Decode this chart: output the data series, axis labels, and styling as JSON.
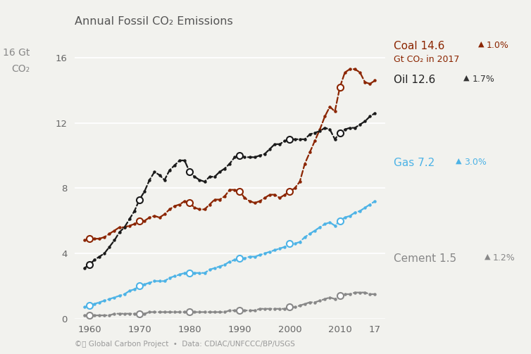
{
  "title": "Annual Fossil CO₂ Emissions",
  "background_color": "#f2f2ee",
  "plot_bg": "#f2f2ee",
  "footnote": "©Ⓡ Global Carbon Project  •  Data: CDIAC/UNFCCC/BP/USGS",
  "ylim": [
    0,
    16.5
  ],
  "yticks": [
    0,
    4,
    8,
    12,
    16
  ],
  "xlim": [
    1957,
    2019
  ],
  "coal_color": "#8B2500",
  "oil_color": "#1a1a1a",
  "gas_color": "#4db3e6",
  "cement_color": "#888888",
  "coal_years": [
    1959,
    1960,
    1961,
    1962,
    1963,
    1964,
    1965,
    1966,
    1967,
    1968,
    1969,
    1970,
    1971,
    1972,
    1973,
    1974,
    1975,
    1976,
    1977,
    1978,
    1979,
    1980,
    1981,
    1982,
    1983,
    1984,
    1985,
    1986,
    1987,
    1988,
    1989,
    1990,
    1991,
    1992,
    1993,
    1994,
    1995,
    1996,
    1997,
    1998,
    1999,
    2000,
    2001,
    2002,
    2003,
    2004,
    2005,
    2006,
    2007,
    2008,
    2009,
    2010,
    2011,
    2012,
    2013,
    2014,
    2015,
    2016,
    2017
  ],
  "coal_vals": [
    4.8,
    4.9,
    4.9,
    4.9,
    5.0,
    5.2,
    5.4,
    5.6,
    5.6,
    5.7,
    5.8,
    6.0,
    6.0,
    6.2,
    6.3,
    6.2,
    6.4,
    6.7,
    6.9,
    7.0,
    7.2,
    7.1,
    6.8,
    6.7,
    6.7,
    7.0,
    7.3,
    7.3,
    7.5,
    7.9,
    7.9,
    7.8,
    7.4,
    7.2,
    7.1,
    7.2,
    7.4,
    7.6,
    7.6,
    7.4,
    7.6,
    7.8,
    8.0,
    8.4,
    9.5,
    10.2,
    10.9,
    11.6,
    12.4,
    13.0,
    12.7,
    14.2,
    15.1,
    15.3,
    15.3,
    15.1,
    14.5,
    14.4,
    14.6
  ],
  "oil_years": [
    1959,
    1960,
    1961,
    1962,
    1963,
    1964,
    1965,
    1966,
    1967,
    1968,
    1969,
    1970,
    1971,
    1972,
    1973,
    1974,
    1975,
    1976,
    1977,
    1978,
    1979,
    1980,
    1981,
    1982,
    1983,
    1984,
    1985,
    1986,
    1987,
    1988,
    1989,
    1990,
    1991,
    1992,
    1993,
    1994,
    1995,
    1996,
    1997,
    1998,
    1999,
    2000,
    2001,
    2002,
    2003,
    2004,
    2005,
    2006,
    2007,
    2008,
    2009,
    2010,
    2011,
    2012,
    2013,
    2014,
    2015,
    2016,
    2017
  ],
  "oil_vals": [
    3.1,
    3.3,
    3.6,
    3.8,
    4.0,
    4.4,
    4.8,
    5.3,
    5.6,
    6.1,
    6.6,
    7.3,
    7.8,
    8.5,
    9.0,
    8.8,
    8.5,
    9.1,
    9.4,
    9.7,
    9.7,
    9.0,
    8.7,
    8.5,
    8.4,
    8.7,
    8.7,
    9.0,
    9.2,
    9.5,
    9.9,
    10.0,
    9.9,
    9.9,
    9.9,
    10.0,
    10.1,
    10.4,
    10.7,
    10.7,
    10.9,
    11.0,
    11.0,
    11.0,
    11.0,
    11.3,
    11.4,
    11.5,
    11.7,
    11.6,
    11.0,
    11.4,
    11.6,
    11.7,
    11.7,
    11.9,
    12.1,
    12.4,
    12.6
  ],
  "gas_years": [
    1959,
    1960,
    1961,
    1962,
    1963,
    1964,
    1965,
    1966,
    1967,
    1968,
    1969,
    1970,
    1971,
    1972,
    1973,
    1974,
    1975,
    1976,
    1977,
    1978,
    1979,
    1980,
    1981,
    1982,
    1983,
    1984,
    1985,
    1986,
    1987,
    1988,
    1989,
    1990,
    1991,
    1992,
    1993,
    1994,
    1995,
    1996,
    1997,
    1998,
    1999,
    2000,
    2001,
    2002,
    2003,
    2004,
    2005,
    2006,
    2007,
    2008,
    2009,
    2010,
    2011,
    2012,
    2013,
    2014,
    2015,
    2016,
    2017
  ],
  "gas_vals": [
    0.7,
    0.8,
    0.9,
    1.0,
    1.1,
    1.2,
    1.3,
    1.4,
    1.5,
    1.7,
    1.8,
    2.0,
    2.1,
    2.2,
    2.3,
    2.3,
    2.3,
    2.5,
    2.6,
    2.7,
    2.8,
    2.8,
    2.8,
    2.8,
    2.8,
    3.0,
    3.1,
    3.2,
    3.3,
    3.5,
    3.6,
    3.7,
    3.7,
    3.8,
    3.8,
    3.9,
    4.0,
    4.1,
    4.2,
    4.3,
    4.4,
    4.6,
    4.6,
    4.7,
    5.0,
    5.2,
    5.4,
    5.6,
    5.8,
    5.9,
    5.7,
    6.0,
    6.2,
    6.3,
    6.5,
    6.6,
    6.8,
    7.0,
    7.2
  ],
  "cement_years": [
    1959,
    1960,
    1961,
    1962,
    1963,
    1964,
    1965,
    1966,
    1967,
    1968,
    1969,
    1970,
    1971,
    1972,
    1973,
    1974,
    1975,
    1976,
    1977,
    1978,
    1979,
    1980,
    1981,
    1982,
    1983,
    1984,
    1985,
    1986,
    1987,
    1988,
    1989,
    1990,
    1991,
    1992,
    1993,
    1994,
    1995,
    1996,
    1997,
    1998,
    1999,
    2000,
    2001,
    2002,
    2003,
    2004,
    2005,
    2006,
    2007,
    2008,
    2009,
    2010,
    2011,
    2012,
    2013,
    2014,
    2015,
    2016,
    2017
  ],
  "cement_vals": [
    0.2,
    0.2,
    0.2,
    0.2,
    0.2,
    0.2,
    0.3,
    0.3,
    0.3,
    0.3,
    0.3,
    0.3,
    0.3,
    0.4,
    0.4,
    0.4,
    0.4,
    0.4,
    0.4,
    0.4,
    0.4,
    0.4,
    0.4,
    0.4,
    0.4,
    0.4,
    0.4,
    0.4,
    0.4,
    0.5,
    0.5,
    0.5,
    0.5,
    0.5,
    0.5,
    0.6,
    0.6,
    0.6,
    0.6,
    0.6,
    0.6,
    0.7,
    0.7,
    0.8,
    0.9,
    1.0,
    1.0,
    1.1,
    1.2,
    1.3,
    1.2,
    1.4,
    1.5,
    1.5,
    1.6,
    1.6,
    1.6,
    1.5,
    1.5
  ],
  "circle_years": [
    1960,
    1970,
    1980,
    1990,
    2000,
    2010
  ]
}
